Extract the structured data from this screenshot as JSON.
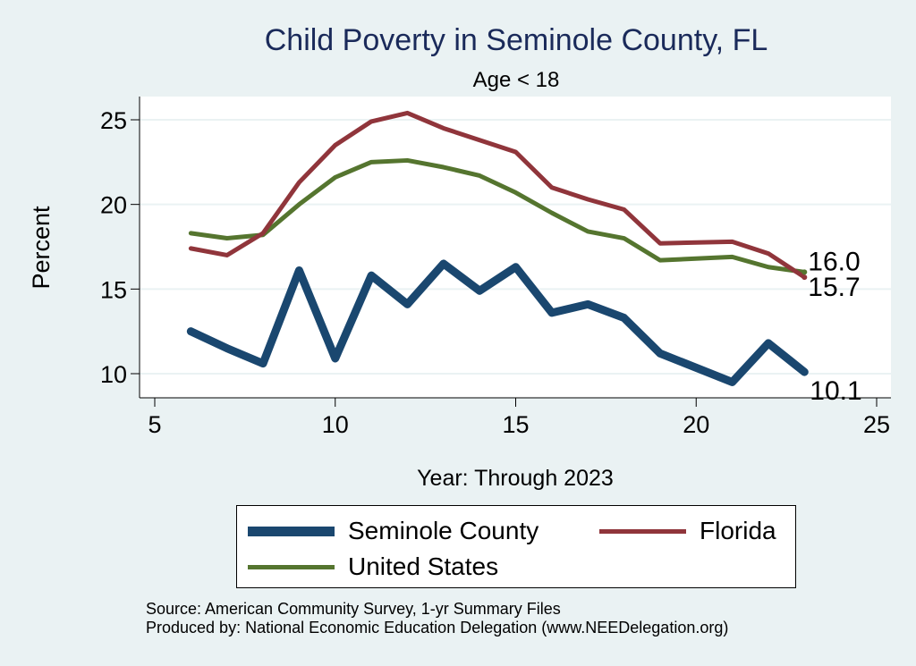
{
  "chart_data": {
    "type": "line",
    "title": "Child Poverty in Seminole County, FL",
    "subtitle": "Age < 18",
    "xlabel": "Year: Through 2023",
    "ylabel": "Percent",
    "xlim": [
      5,
      25
    ],
    "ylim": [
      9,
      26
    ],
    "xticks": [
      5,
      10,
      15,
      20,
      25
    ],
    "yticks": [
      10,
      15,
      20,
      25
    ],
    "grid": true,
    "legend_position": "bottom",
    "series": [
      {
        "name": "Seminole County",
        "color": "#1a476f",
        "points": [
          [
            6,
            12.5
          ],
          [
            7,
            11.5
          ],
          [
            8,
            10.6
          ],
          [
            9,
            16.1
          ],
          [
            10,
            10.9
          ],
          [
            11,
            15.8
          ],
          [
            12,
            14.1
          ],
          [
            13,
            16.5
          ],
          [
            14,
            14.9
          ],
          [
            15,
            16.3
          ],
          [
            16,
            13.6
          ],
          [
            17,
            14.1
          ],
          [
            18,
            13.3
          ],
          [
            19,
            11.2
          ],
          [
            21,
            9.5
          ],
          [
            22,
            11.8
          ],
          [
            23,
            10.1
          ]
        ],
        "end_label": "10.1"
      },
      {
        "name": "Florida",
        "color": "#90353b",
        "points": [
          [
            6,
            17.4
          ],
          [
            7,
            17.0
          ],
          [
            8,
            18.3
          ],
          [
            9,
            21.3
          ],
          [
            10,
            23.5
          ],
          [
            11,
            24.9
          ],
          [
            12,
            25.4
          ],
          [
            13,
            24.5
          ],
          [
            14,
            23.8
          ],
          [
            15,
            23.1
          ],
          [
            16,
            21.0
          ],
          [
            17,
            20.3
          ],
          [
            18,
            19.7
          ],
          [
            19,
            17.7
          ],
          [
            21,
            17.8
          ],
          [
            22,
            17.1
          ],
          [
            23,
            15.7
          ]
        ],
        "end_label": "15.7"
      },
      {
        "name": "United States",
        "color": "#55752f",
        "points": [
          [
            6,
            18.3
          ],
          [
            7,
            18.0
          ],
          [
            8,
            18.2
          ],
          [
            9,
            20.0
          ],
          [
            10,
            21.6
          ],
          [
            11,
            22.5
          ],
          [
            12,
            22.6
          ],
          [
            13,
            22.2
          ],
          [
            14,
            21.7
          ],
          [
            15,
            20.7
          ],
          [
            16,
            19.5
          ],
          [
            17,
            18.4
          ],
          [
            18,
            18.0
          ],
          [
            19,
            16.7
          ],
          [
            21,
            16.9
          ],
          [
            22,
            16.3
          ],
          [
            23,
            16.0
          ]
        ],
        "end_label": "16.0"
      }
    ]
  },
  "legend": {
    "items": [
      {
        "name": "Seminole County",
        "color": "#1a476f"
      },
      {
        "name": "Florida",
        "color": "#90353b"
      },
      {
        "name": "United States",
        "color": "#55752f"
      }
    ]
  },
  "footer": {
    "source": "Source: American Community Survey, 1-yr Summary Files",
    "produced": "Produced by: National Economic Education Delegation (www.NEEDelegation.org)"
  }
}
